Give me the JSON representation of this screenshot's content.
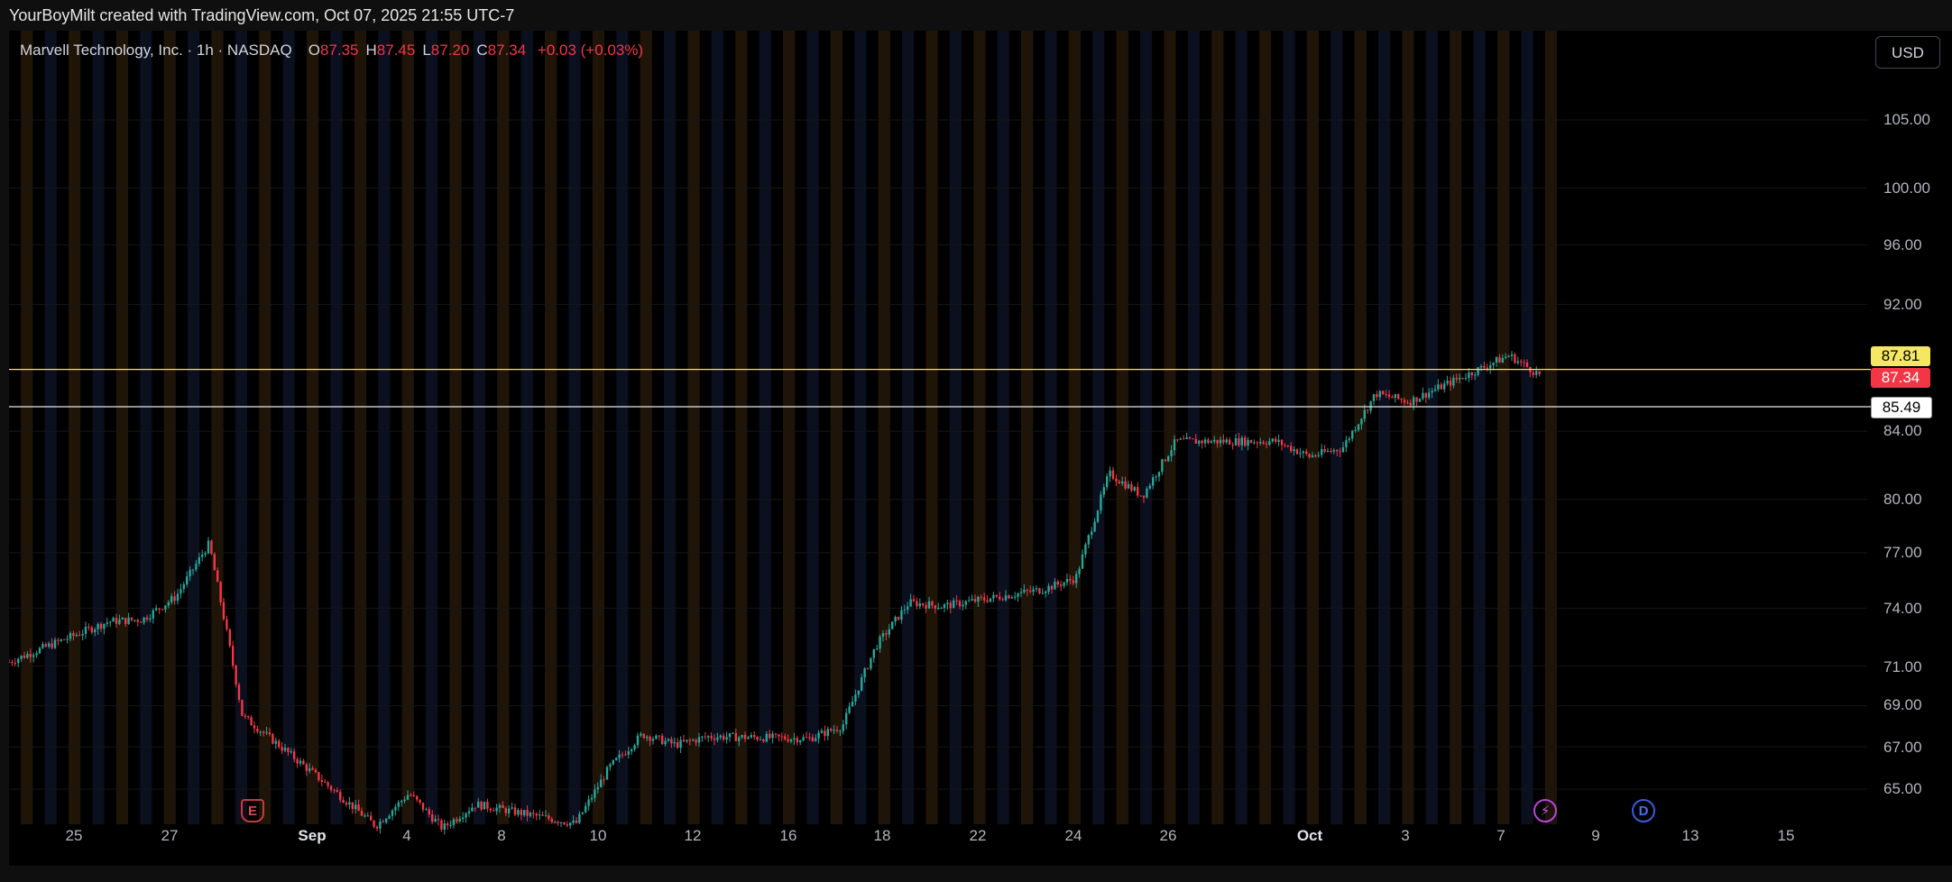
{
  "caption": "YourBoyMilt created with TradingView.com, Oct 07, 2025 21:55 UTC-7",
  "symbol": {
    "title": "Marvell Technology, Inc. · 1h · NASDAQ",
    "open_label": "O",
    "open": "87.35",
    "high_label": "H",
    "high": "87.45",
    "low_label": "L",
    "low": "87.20",
    "close_label": "C",
    "close": "87.34",
    "change": "+0.03 (+0.03%)"
  },
  "currency_button": "USD",
  "price_labels": {
    "resistance": "87.81",
    "current": "87.34",
    "support": "85.49"
  },
  "colors": {
    "up": "#26a69a",
    "down": "#f23645",
    "resistance_line": "#f5e663",
    "support_line": "#e6e6e6",
    "session_orange": "#1f1408",
    "session_blue": "#0b0f1e",
    "grid": "#161616"
  },
  "markers": {
    "earnings": "E",
    "split": "⚡",
    "dividend": "D"
  },
  "chart_data": {
    "type": "candlestick",
    "interval": "1h",
    "y_scale": "log",
    "y_ticks": [
      "105.00",
      "100.00",
      "96.00",
      "92.00",
      "84.00",
      "80.00",
      "77.00",
      "74.00",
      "71.00",
      "69.00",
      "67.00",
      "65.00"
    ],
    "x_ticks": [
      "25",
      "27",
      "Sep",
      "4",
      "8",
      "10",
      "12",
      "16",
      "18",
      "22",
      "24",
      "26",
      "Oct",
      "3",
      "7",
      "9",
      "13",
      "15"
    ],
    "horizontal_lines": [
      {
        "price": 87.81
      },
      {
        "price": 85.49
      }
    ],
    "last_price": 87.34,
    "price_path": [
      {
        "date": "2025-08-22",
        "price": 71.2
      },
      {
        "date": "2025-08-25",
        "price": 73.3
      },
      {
        "date": "2025-08-26",
        "price": 73.4
      },
      {
        "date": "2025-08-27",
        "price": 74.6
      },
      {
        "date": "2025-08-28",
        "price": 77.5
      },
      {
        "date": "2025-08-29",
        "price": 68.5
      },
      {
        "date": "2025-09-02",
        "price": 63.3
      },
      {
        "date": "2025-09-03",
        "price": 64.8
      },
      {
        "date": "2025-09-04",
        "price": 63.2
      },
      {
        "date": "2025-09-05",
        "price": 64.3
      },
      {
        "date": "2025-09-08",
        "price": 63.4
      },
      {
        "date": "2025-09-09",
        "price": 66.0
      },
      {
        "date": "2025-09-10",
        "price": 67.6
      },
      {
        "date": "2025-09-11",
        "price": 67.1
      },
      {
        "date": "2025-09-12",
        "price": 67.5
      },
      {
        "date": "2025-09-15",
        "price": 67.4
      },
      {
        "date": "2025-09-16",
        "price": 68.0
      },
      {
        "date": "2025-09-17",
        "price": 72.0
      },
      {
        "date": "2025-09-18",
        "price": 74.3
      },
      {
        "date": "2025-09-19",
        "price": 74.1
      },
      {
        "date": "2025-09-22",
        "price": 75.0
      },
      {
        "date": "2025-09-23",
        "price": 75.6
      },
      {
        "date": "2025-09-24",
        "price": 81.5
      },
      {
        "date": "2025-09-25",
        "price": 80.2
      },
      {
        "date": "2025-09-26",
        "price": 83.4
      },
      {
        "date": "2025-09-29",
        "price": 83.4
      },
      {
        "date": "2025-09-30",
        "price": 82.5
      },
      {
        "date": "2025-10-01",
        "price": 83.0
      },
      {
        "date": "2025-10-02",
        "price": 86.3
      },
      {
        "date": "2025-10-03",
        "price": 85.8
      },
      {
        "date": "2025-10-06",
        "price": 88.7
      },
      {
        "date": "2025-10-07",
        "price": 87.34
      }
    ]
  }
}
